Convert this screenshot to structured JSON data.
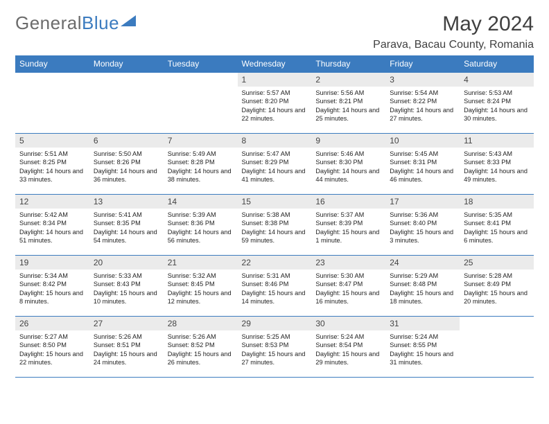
{
  "logo": {
    "textGray": "General",
    "textBlue": "Blue"
  },
  "title": "May 2024",
  "location": "Parava, Bacau County, Romania",
  "headerColor": "#3b7bbf",
  "dayHeaderBg": "#ebebeb",
  "daynames": [
    "Sunday",
    "Monday",
    "Tuesday",
    "Wednesday",
    "Thursday",
    "Friday",
    "Saturday"
  ],
  "weeks": [
    [
      {
        "n": "",
        "sr": "",
        "ss": "",
        "dl": ""
      },
      {
        "n": "",
        "sr": "",
        "ss": "",
        "dl": ""
      },
      {
        "n": "",
        "sr": "",
        "ss": "",
        "dl": ""
      },
      {
        "n": "1",
        "sr": "5:57 AM",
        "ss": "8:20 PM",
        "dl": "14 hours and 22 minutes."
      },
      {
        "n": "2",
        "sr": "5:56 AM",
        "ss": "8:21 PM",
        "dl": "14 hours and 25 minutes."
      },
      {
        "n": "3",
        "sr": "5:54 AM",
        "ss": "8:22 PM",
        "dl": "14 hours and 27 minutes."
      },
      {
        "n": "4",
        "sr": "5:53 AM",
        "ss": "8:24 PM",
        "dl": "14 hours and 30 minutes."
      }
    ],
    [
      {
        "n": "5",
        "sr": "5:51 AM",
        "ss": "8:25 PM",
        "dl": "14 hours and 33 minutes."
      },
      {
        "n": "6",
        "sr": "5:50 AM",
        "ss": "8:26 PM",
        "dl": "14 hours and 36 minutes."
      },
      {
        "n": "7",
        "sr": "5:49 AM",
        "ss": "8:28 PM",
        "dl": "14 hours and 38 minutes."
      },
      {
        "n": "8",
        "sr": "5:47 AM",
        "ss": "8:29 PM",
        "dl": "14 hours and 41 minutes."
      },
      {
        "n": "9",
        "sr": "5:46 AM",
        "ss": "8:30 PM",
        "dl": "14 hours and 44 minutes."
      },
      {
        "n": "10",
        "sr": "5:45 AM",
        "ss": "8:31 PM",
        "dl": "14 hours and 46 minutes."
      },
      {
        "n": "11",
        "sr": "5:43 AM",
        "ss": "8:33 PM",
        "dl": "14 hours and 49 minutes."
      }
    ],
    [
      {
        "n": "12",
        "sr": "5:42 AM",
        "ss": "8:34 PM",
        "dl": "14 hours and 51 minutes."
      },
      {
        "n": "13",
        "sr": "5:41 AM",
        "ss": "8:35 PM",
        "dl": "14 hours and 54 minutes."
      },
      {
        "n": "14",
        "sr": "5:39 AM",
        "ss": "8:36 PM",
        "dl": "14 hours and 56 minutes."
      },
      {
        "n": "15",
        "sr": "5:38 AM",
        "ss": "8:38 PM",
        "dl": "14 hours and 59 minutes."
      },
      {
        "n": "16",
        "sr": "5:37 AM",
        "ss": "8:39 PM",
        "dl": "15 hours and 1 minute."
      },
      {
        "n": "17",
        "sr": "5:36 AM",
        "ss": "8:40 PM",
        "dl": "15 hours and 3 minutes."
      },
      {
        "n": "18",
        "sr": "5:35 AM",
        "ss": "8:41 PM",
        "dl": "15 hours and 6 minutes."
      }
    ],
    [
      {
        "n": "19",
        "sr": "5:34 AM",
        "ss": "8:42 PM",
        "dl": "15 hours and 8 minutes."
      },
      {
        "n": "20",
        "sr": "5:33 AM",
        "ss": "8:43 PM",
        "dl": "15 hours and 10 minutes."
      },
      {
        "n": "21",
        "sr": "5:32 AM",
        "ss": "8:45 PM",
        "dl": "15 hours and 12 minutes."
      },
      {
        "n": "22",
        "sr": "5:31 AM",
        "ss": "8:46 PM",
        "dl": "15 hours and 14 minutes."
      },
      {
        "n": "23",
        "sr": "5:30 AM",
        "ss": "8:47 PM",
        "dl": "15 hours and 16 minutes."
      },
      {
        "n": "24",
        "sr": "5:29 AM",
        "ss": "8:48 PM",
        "dl": "15 hours and 18 minutes."
      },
      {
        "n": "25",
        "sr": "5:28 AM",
        "ss": "8:49 PM",
        "dl": "15 hours and 20 minutes."
      }
    ],
    [
      {
        "n": "26",
        "sr": "5:27 AM",
        "ss": "8:50 PM",
        "dl": "15 hours and 22 minutes."
      },
      {
        "n": "27",
        "sr": "5:26 AM",
        "ss": "8:51 PM",
        "dl": "15 hours and 24 minutes."
      },
      {
        "n": "28",
        "sr": "5:26 AM",
        "ss": "8:52 PM",
        "dl": "15 hours and 26 minutes."
      },
      {
        "n": "29",
        "sr": "5:25 AM",
        "ss": "8:53 PM",
        "dl": "15 hours and 27 minutes."
      },
      {
        "n": "30",
        "sr": "5:24 AM",
        "ss": "8:54 PM",
        "dl": "15 hours and 29 minutes."
      },
      {
        "n": "31",
        "sr": "5:24 AM",
        "ss": "8:55 PM",
        "dl": "15 hours and 31 minutes."
      },
      {
        "n": "",
        "sr": "",
        "ss": "",
        "dl": ""
      }
    ]
  ],
  "labels": {
    "sunrise": "Sunrise:",
    "sunset": "Sunset:",
    "daylight": "Daylight:"
  }
}
